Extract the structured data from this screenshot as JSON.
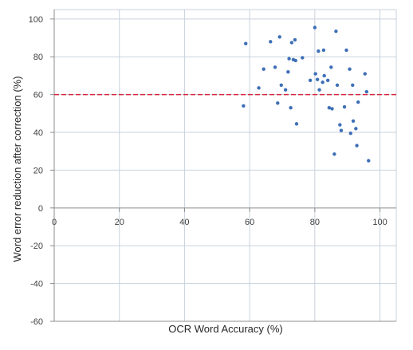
{
  "chart_data": {
    "type": "scatter",
    "title": "",
    "xlabel": "OCR Word Accuracy (%)",
    "ylabel": "Word error reduction after correction (%)",
    "xlim": [
      0,
      105
    ],
    "ylim": [
      -60,
      105
    ],
    "x_ticks": [
      0,
      20,
      40,
      60,
      80,
      100
    ],
    "y_ticks": [
      -60,
      -40,
      -20,
      0,
      20,
      40,
      60,
      80,
      100
    ],
    "grid": true,
    "legend": "none",
    "reference_line": {
      "y": 60,
      "color": "#d7263d",
      "style": "dashed"
    },
    "point_color": "#3d6fb6",
    "series": [
      {
        "points": [
          [
            58.1,
            54
          ],
          [
            58.8,
            87
          ],
          [
            62.8,
            63.5
          ],
          [
            64.3,
            73.5
          ],
          [
            66.4,
            88
          ],
          [
            67.8,
            74.5
          ],
          [
            68.6,
            55.5
          ],
          [
            69.2,
            90.5
          ],
          [
            69.7,
            65
          ],
          [
            71.0,
            62.5
          ],
          [
            71.8,
            72
          ],
          [
            72.1,
            79
          ],
          [
            72.6,
            53
          ],
          [
            72.9,
            87.5
          ],
          [
            73.4,
            78.5
          ],
          [
            73.9,
            89
          ],
          [
            74.1,
            78
          ],
          [
            74.4,
            44.5
          ],
          [
            76.2,
            79.5
          ],
          [
            78.6,
            67.5
          ],
          [
            80.0,
            95.5
          ],
          [
            80.2,
            71
          ],
          [
            80.8,
            68
          ],
          [
            81.1,
            83
          ],
          [
            81.4,
            62.5
          ],
          [
            82.4,
            66.5
          ],
          [
            82.7,
            83.5
          ],
          [
            82.9,
            70
          ],
          [
            84.0,
            67.5
          ],
          [
            84.4,
            53
          ],
          [
            85.0,
            74.5
          ],
          [
            85.3,
            52.5
          ],
          [
            86.0,
            28.5
          ],
          [
            86.5,
            93.5
          ],
          [
            86.9,
            65
          ],
          [
            87.7,
            44
          ],
          [
            88.1,
            41
          ],
          [
            89.1,
            53.5
          ],
          [
            89.7,
            83.5
          ],
          [
            90.7,
            73.5
          ],
          [
            91.0,
            39.5
          ],
          [
            91.6,
            65
          ],
          [
            91.8,
            46
          ],
          [
            92.6,
            42
          ],
          [
            92.9,
            33
          ],
          [
            93.3,
            56
          ],
          [
            95.4,
            71
          ],
          [
            95.9,
            61.5
          ],
          [
            96.5,
            25
          ]
        ]
      }
    ]
  }
}
